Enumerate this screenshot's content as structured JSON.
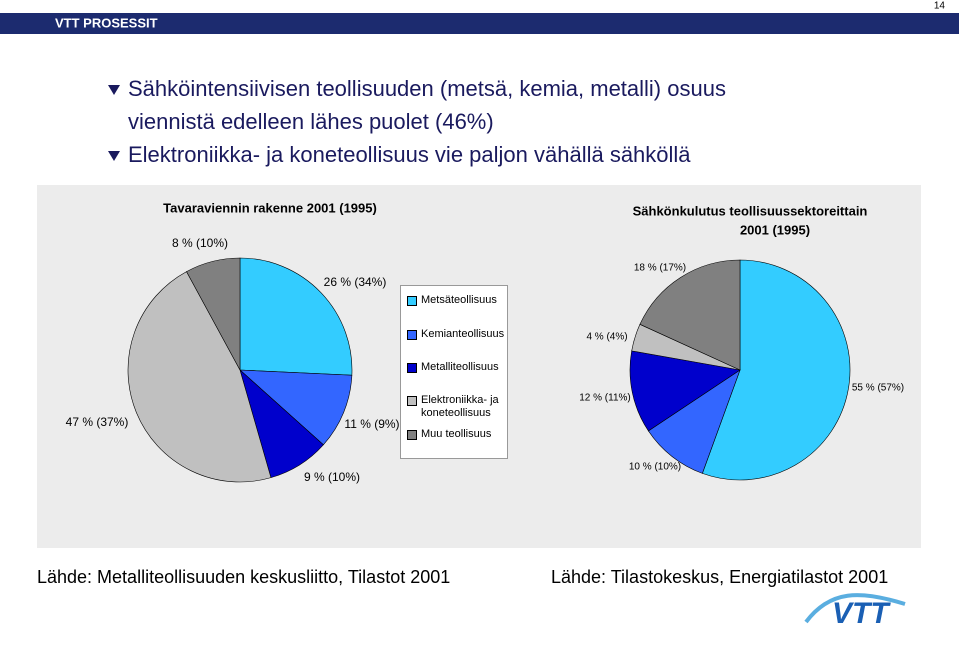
{
  "page_number": "14",
  "header": {
    "title": "VTT PROSESSIT"
  },
  "bullets": [
    "Sähköintensiivisen teollisuuden (metsä, kemia, metalli) osuus viennistä edelleen lähes puolet (46%)",
    "Elektroniikka- ja koneteollisuus vie paljon vähällä sähköllä"
  ],
  "chart_data": [
    {
      "type": "pie",
      "title": "Tavaraviennin rakenne 2001 (1995)",
      "categories": [
        "Metsäteollisuus",
        "Kemianteollisuus",
        "Metalliteollisuus",
        "Elektroniikka- ja koneteollisuus",
        "Muu teollisuus"
      ],
      "values": [
        26,
        11,
        9,
        47,
        8
      ],
      "value_labels": [
        "26 % (34%)",
        "11 % (9%)",
        "9 % (10%)",
        "47 % (37%)",
        "8 % (10%)"
      ],
      "colors": [
        "#33ccff",
        "#3366ff",
        "#0000cc",
        "#c0c0c0",
        "#808080"
      ],
      "legend": "right"
    },
    {
      "type": "pie",
      "title": "Sähkönkulutus teollisuussektoreittain",
      "subtitle": "2001 (1995)",
      "values": [
        55,
        10,
        12,
        4,
        18
      ],
      "value_labels": [
        "55 % (57%)",
        "10 % (10%)",
        "12 % (11%)",
        "4 % (4%)",
        "18 % (17%)"
      ],
      "colors": [
        "#33ccff",
        "#3366ff",
        "#0000cc",
        "#c0c0c0",
        "#808080"
      ]
    }
  ],
  "sources": [
    "Lähde: Metalliteollisuuden keskusliitto, Tilastot 2001",
    "Lähde: Tilastokeskus, Energiatilastot 2001"
  ]
}
